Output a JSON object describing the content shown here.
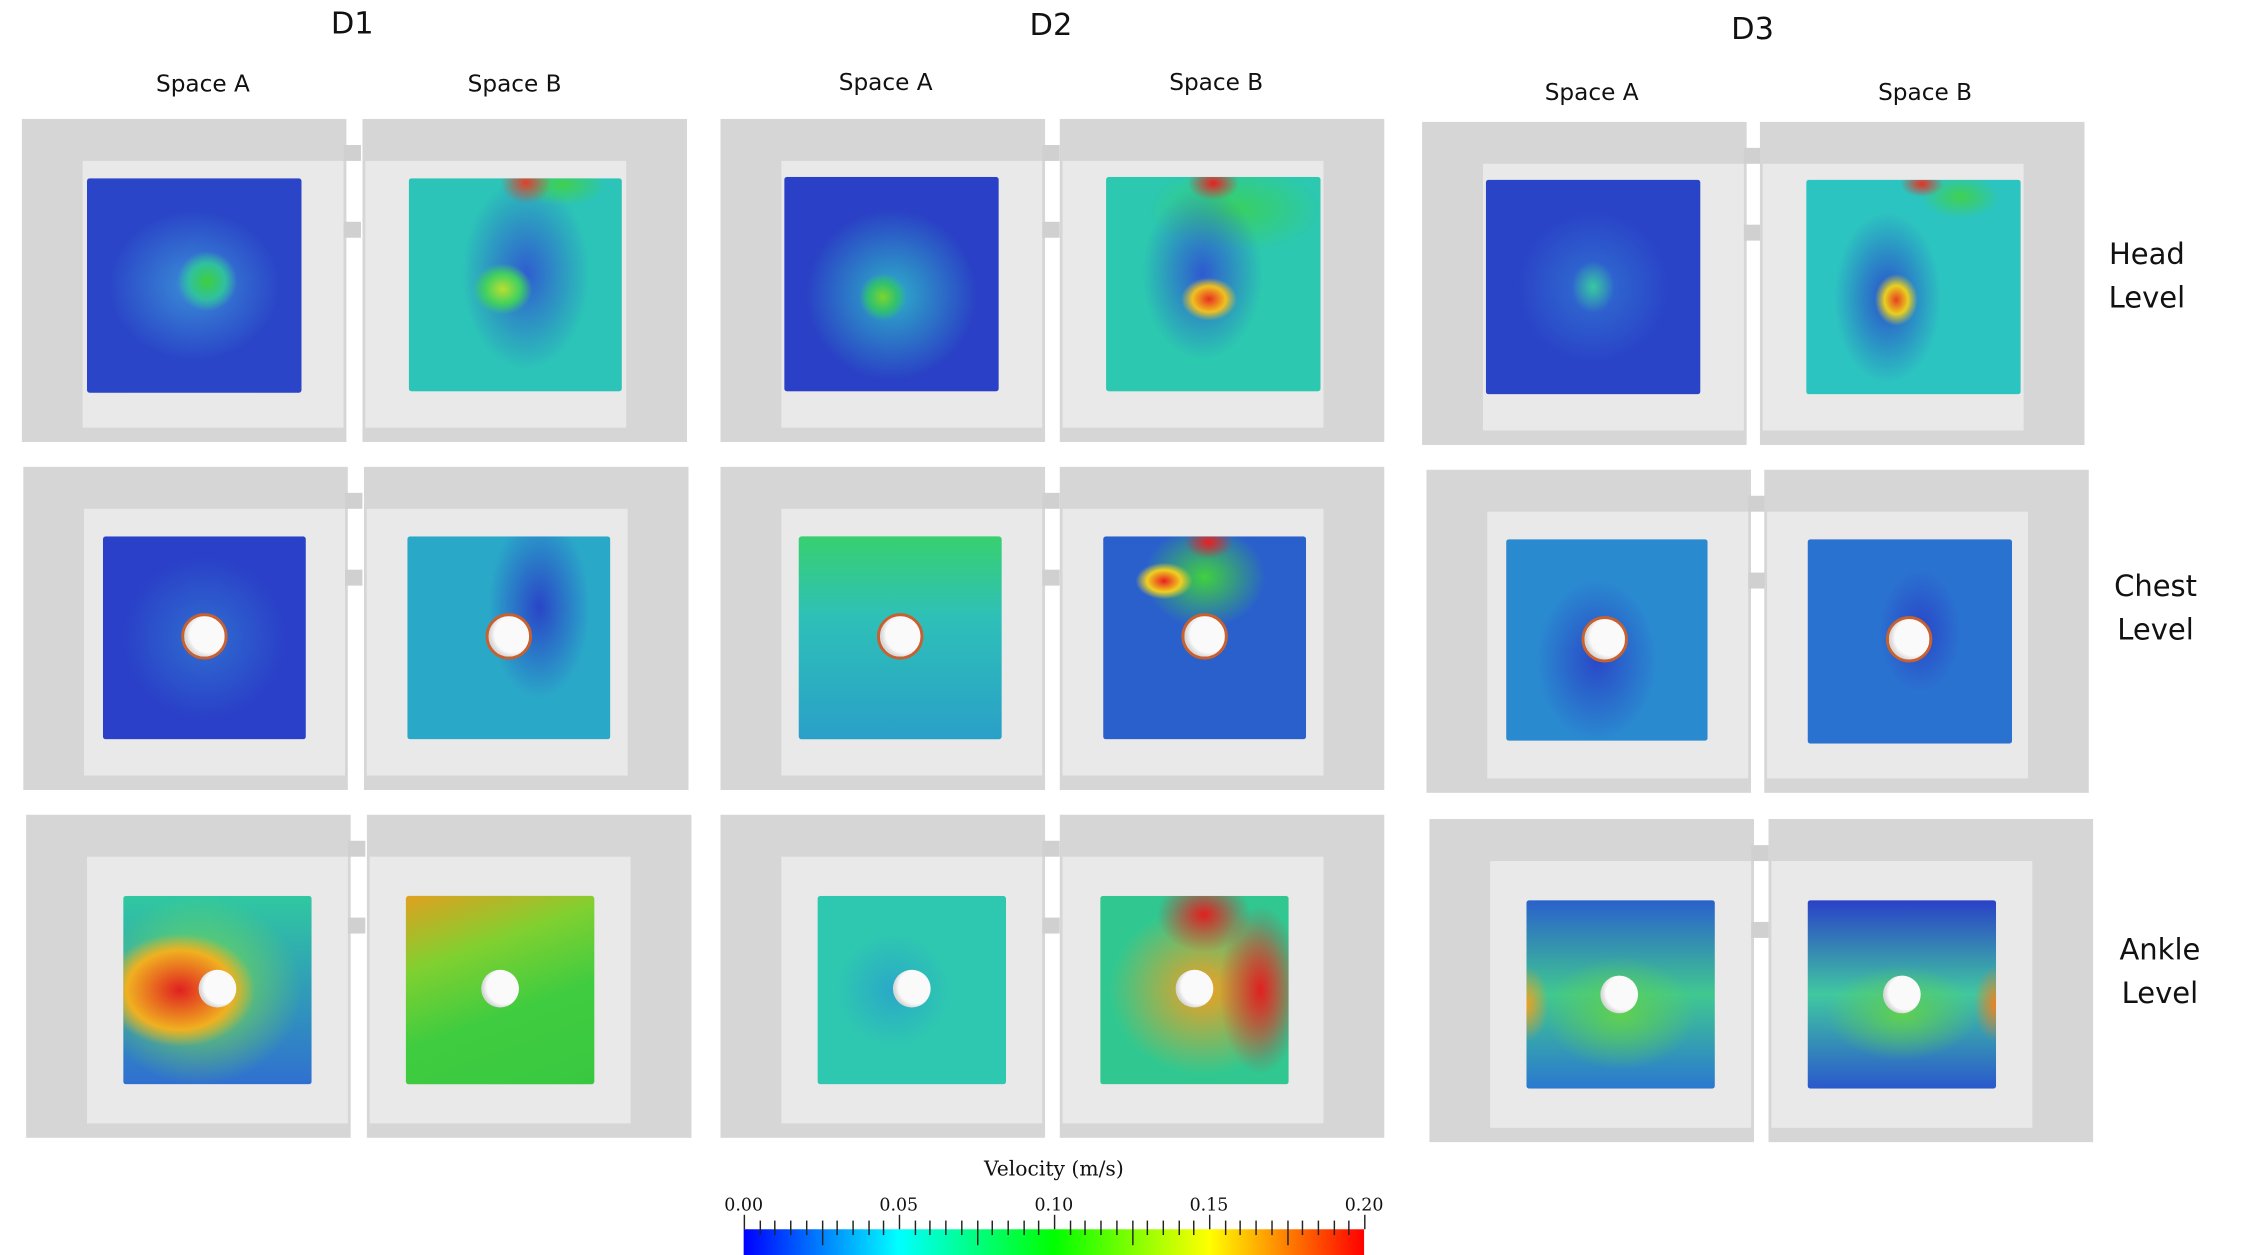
{
  "columns": [
    {
      "title": "D1",
      "spaces": [
        "Space A",
        "Space B"
      ]
    },
    {
      "title": "D2",
      "spaces": [
        "Space A",
        "Space B"
      ]
    },
    {
      "title": "D3",
      "spaces": [
        "Space A",
        "Space B"
      ]
    }
  ],
  "rows": [
    {
      "label": "Head\nLevel"
    },
    {
      "label": "Chest\nLevel"
    },
    {
      "label": "Ankle\nLevel"
    }
  ],
  "colorbar": {
    "title": "Velocity (m/s)",
    "min": 0.0,
    "max": 0.2,
    "ticks": [
      "0.00",
      "0.05",
      "0.10",
      "0.15",
      "0.20"
    ],
    "colormap": [
      "#0000ff",
      "#00ffff",
      "#00ff00",
      "#ffff00",
      "#ff0000"
    ]
  }
}
